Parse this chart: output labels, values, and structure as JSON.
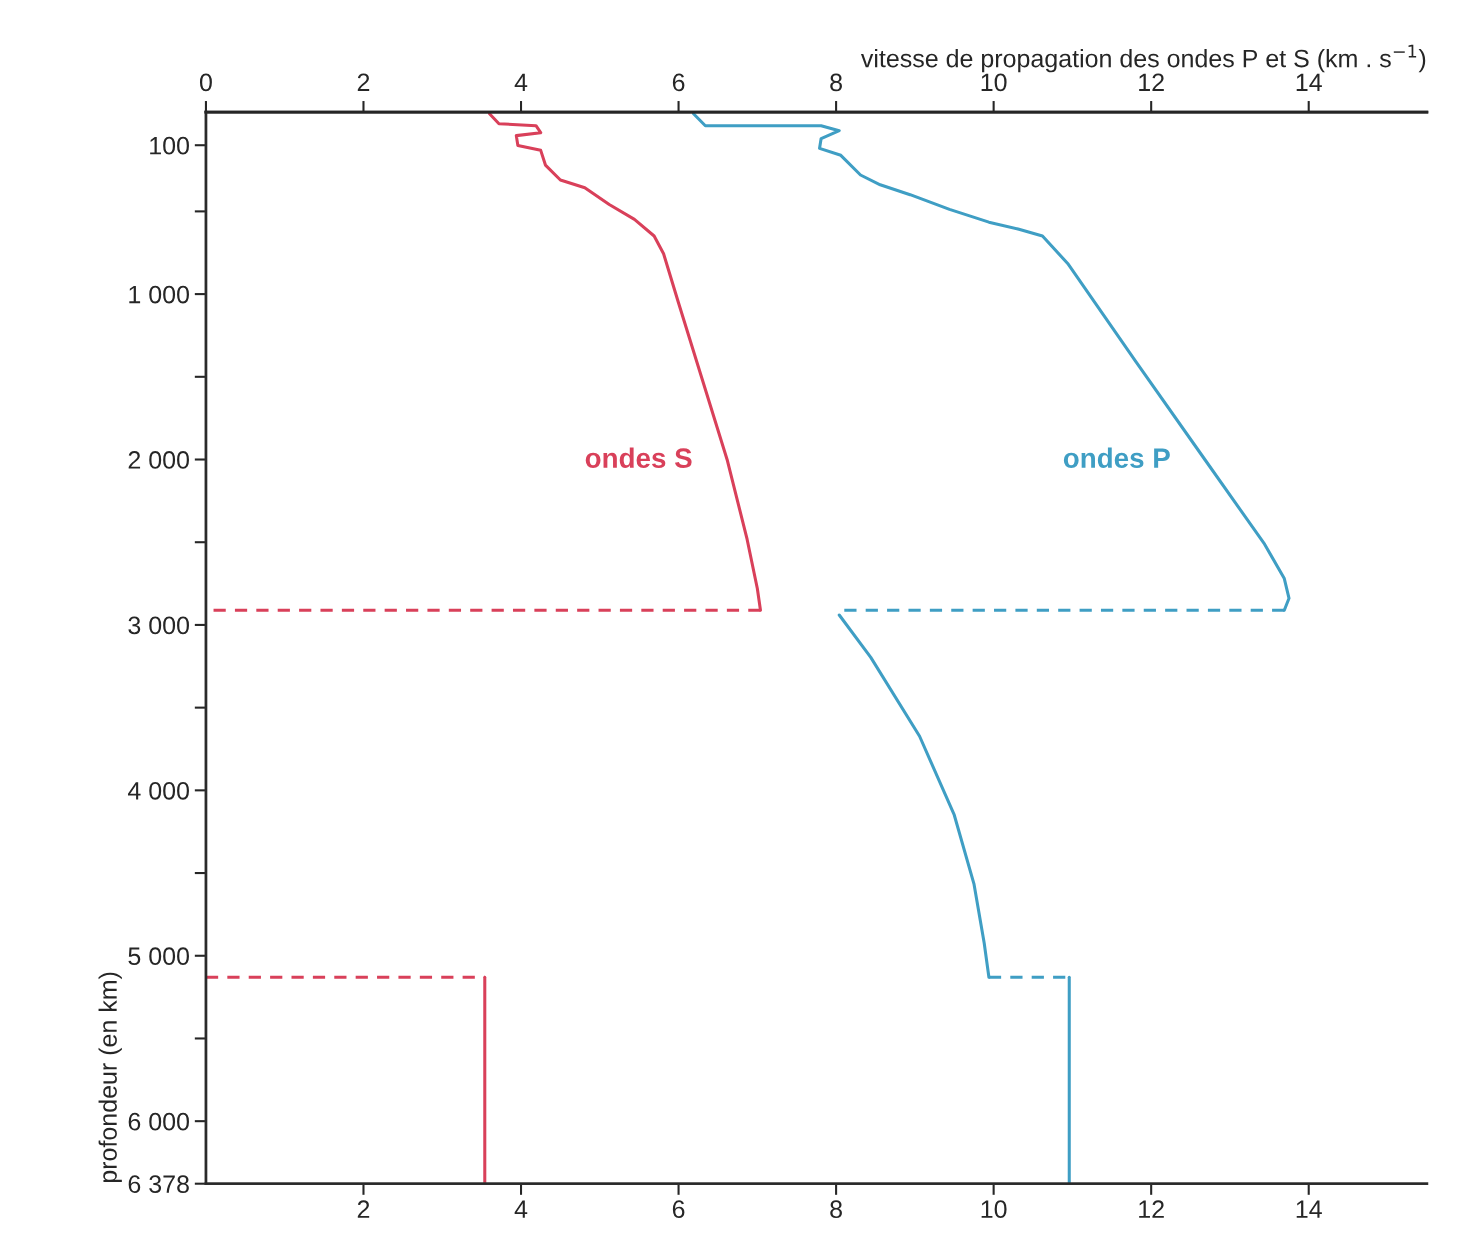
{
  "chart_data": {
    "type": "line",
    "x2label": "vitesse de propagation des ondes P et S (km . s$^{−1}$)",
    "ylabel": "profondeur (en km)",
    "xlim": [
      0,
      15.5
    ],
    "xticks": [
      2,
      4,
      6,
      8,
      10,
      12,
      14
    ],
    "x2lim": [
      0,
      15.5
    ],
    "x2ticks": [
      0,
      2,
      4,
      6,
      8,
      10,
      12,
      14
    ],
    "ylim": [
      6378,
      -100
    ],
    "yticks": [
      100,
      {
        "value": 500,
        "label": null
      },
      {
        "value": 1000,
        "label": "1 000"
      },
      {
        "value": 1500,
        "label": null
      },
      {
        "value": 2000,
        "label": "2 000"
      },
      {
        "value": 2500,
        "label": null
      },
      {
        "value": 3000,
        "label": "3 000"
      },
      {
        "value": 3500,
        "label": null
      },
      {
        "value": 4000,
        "label": "4 000"
      },
      {
        "value": 4500,
        "label": null
      },
      {
        "value": 5000,
        "label": "5 000"
      },
      {
        "value": 5500,
        "label": null
      },
      {
        "value": 6000,
        "label": "6 000"
      },
      {
        "value": 6378,
        "label": "6 378"
      }
    ],
    "grid": false,
    "legend": false,
    "series": [
      {
        "name": "ondes S",
        "color": "#d9405a",
        "line_style": "solid",
        "x": [
          3.6,
          3.72,
          4.19,
          4.25,
          3.94,
          3.96,
          4.25,
          4.31,
          4.5,
          4.81,
          5.12,
          5.44,
          5.69,
          5.81,
          6.0,
          6.31,
          6.62,
          6.87,
          7.0,
          7.04
        ],
        "values": [
          -90,
          -30,
          -18,
          24,
          42,
          101,
          131,
          220,
          310,
          357,
          458,
          548,
          649,
          756,
          1054,
          1530,
          2006,
          2482,
          2780,
          2911
        ]
      },
      {
        "color": "#d9405a",
        "line_style": "dashed",
        "x": [
          7.04,
          0
        ],
        "values": [
          2911,
          2911
        ]
      },
      {
        "color": "#d9405a",
        "line_style": "dashed",
        "x": [
          0,
          3.54
        ],
        "values": [
          5130,
          5130
        ]
      },
      {
        "color": "#d9405a",
        "line_style": "solid",
        "x": [
          3.54,
          3.54
        ],
        "values": [
          5130,
          6378
        ]
      },
      {
        "name": "ondes P",
        "color": "#3f9ec4",
        "line_style": "solid",
        "x": [
          6.19,
          6.34,
          7.81,
          8.04,
          7.81,
          7.79,
          8.06,
          8.31,
          8.56,
          8.94,
          9.44,
          9.94,
          10.31,
          10.62,
          10.94,
          11.81,
          12.69,
          13.44,
          13.69,
          13.75,
          13.69
        ],
        "values": [
          -90,
          -18,
          -18,
          12,
          60,
          119,
          161,
          280,
          339,
          399,
          488,
          565,
          607,
          649,
          815,
          1411,
          2006,
          2512,
          2720,
          2839,
          2911
        ]
      },
      {
        "color": "#3f9ec4",
        "line_style": "dashed",
        "x": [
          13.69,
          8.04
        ],
        "values": [
          2911,
          2911
        ]
      },
      {
        "color": "#3f9ec4",
        "line_style": "solid",
        "x": [
          8.04,
          8.44,
          9.06,
          9.5,
          9.75,
          9.88,
          9.94
        ],
        "values": [
          2940,
          3196,
          3673,
          4149,
          4565,
          4923,
          5130
        ]
      },
      {
        "color": "#3f9ec4",
        "line_style": "dashed",
        "x": [
          9.94,
          10.96
        ],
        "values": [
          5130,
          5130
        ]
      },
      {
        "color": "#3f9ec4",
        "line_style": "solid",
        "x": [
          10.96,
          10.96
        ],
        "values": [
          5130,
          6378
        ]
      }
    ]
  }
}
